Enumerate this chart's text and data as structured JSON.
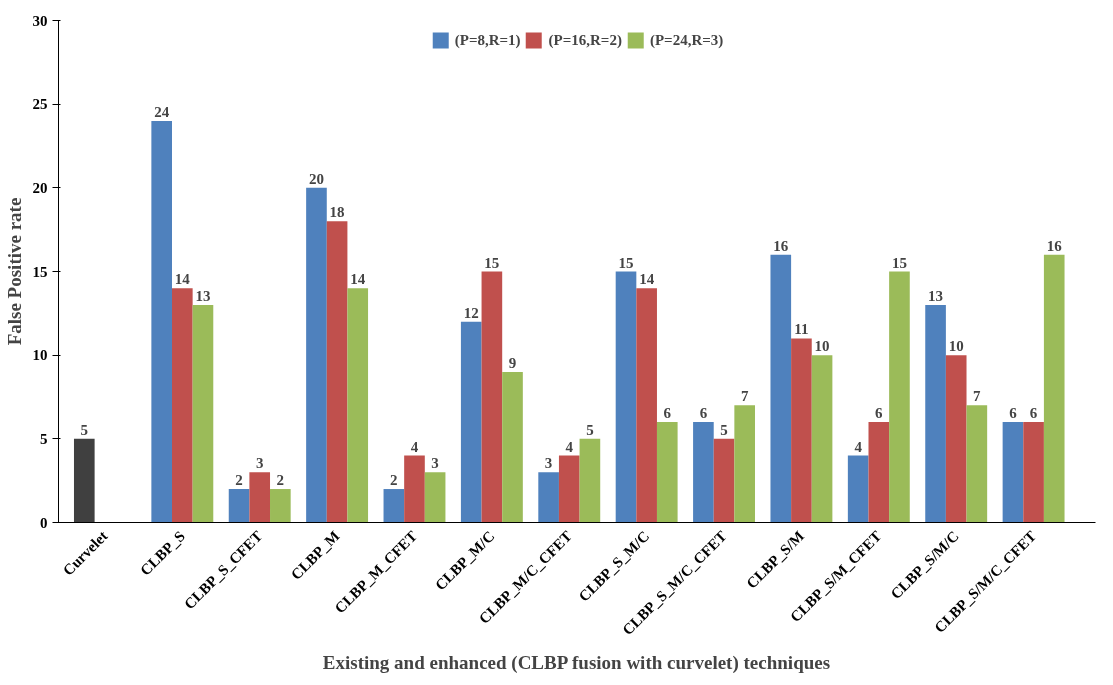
{
  "chart_data": {
    "type": "bar",
    "xlabel": "Existing and enhanced (CLBP fusion with curvelet) techniques",
    "ylabel": "False Positive rate",
    "categories": [
      "Curvelet",
      "CLBP_S",
      "CLBP_S_CFET",
      "CLBP_M",
      "CLBP_M_CFET",
      "CLBP_M/C",
      "CLBP_M/C_CFET",
      "CLBP_S_M/C",
      "CLBP_S_M/C_CFET",
      "CLBP_S/M",
      "CLBP_S/M_CFET",
      "CLBP_S/M/C",
      "CLBP_S/M/C_CFET"
    ],
    "series": [
      {
        "name": "(P=8,R=1)",
        "color": "#4f81bd",
        "colors": [
          "#404040",
          "#4f81bd",
          "#4f81bd",
          "#4f81bd",
          "#4f81bd",
          "#4f81bd",
          "#4f81bd",
          "#4f81bd",
          "#4f81bd",
          "#4f81bd",
          "#4f81bd",
          "#4f81bd",
          "#4f81bd"
        ],
        "values": [
          5,
          24,
          2,
          20,
          2,
          12,
          3,
          15,
          6,
          16,
          4,
          13,
          6
        ]
      },
      {
        "name": "(P=16,R=2)",
        "color": "#c0504d",
        "values": [
          null,
          14,
          3,
          18,
          4,
          15,
          4,
          14,
          5,
          11,
          6,
          10,
          6
        ]
      },
      {
        "name": "(P=24,R=3)",
        "color": "#9bbb59",
        "values": [
          null,
          13,
          2,
          14,
          3,
          9,
          5,
          6,
          7,
          10,
          15,
          7,
          16
        ]
      }
    ],
    "ylim": [
      0,
      30
    ],
    "yticks": [
      0,
      5,
      10,
      15,
      20,
      25,
      30
    ],
    "grid": false,
    "legend": "top",
    "data_labels": true
  }
}
